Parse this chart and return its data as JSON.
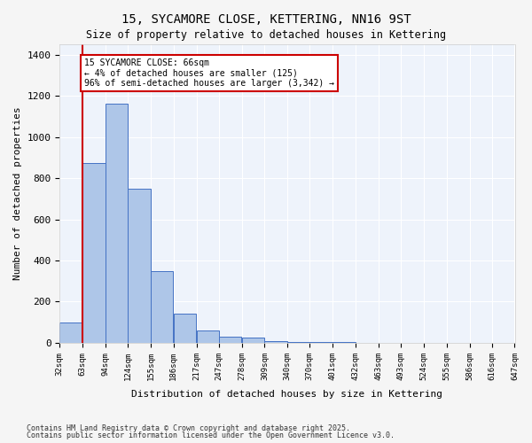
{
  "title1": "15, SYCAMORE CLOSE, KETTERING, NN16 9ST",
  "title2": "Size of property relative to detached houses in Kettering",
  "xlabel": "Distribution of detached houses by size in Kettering",
  "ylabel": "Number of detached properties",
  "bins": [
    32,
    63,
    94,
    124,
    155,
    186,
    217,
    247,
    278,
    309,
    340,
    370,
    401,
    432,
    463,
    493,
    524,
    555,
    586,
    616,
    647
  ],
  "bar_heights": [
    100,
    875,
    1160,
    750,
    350,
    140,
    60,
    30,
    25,
    10,
    5,
    3,
    2,
    1,
    1,
    1,
    0,
    0,
    0,
    0
  ],
  "bar_color": "#aec6e8",
  "bar_edge_color": "#4472c4",
  "bg_color": "#eef3fb",
  "grid_color": "#ffffff",
  "property_line_x": 63,
  "annotation_text": "15 SYCAMORE CLOSE: 66sqm\n← 4% of detached houses are smaller (125)\n96% of semi-detached houses are larger (3,342) →",
  "annotation_box_color": "#ffffff",
  "annotation_border_color": "#cc0000",
  "red_line_color": "#cc0000",
  "ylim": [
    0,
    1450
  ],
  "yticks": [
    0,
    200,
    400,
    600,
    800,
    1000,
    1200,
    1400
  ],
  "footnote1": "Contains HM Land Registry data © Crown copyright and database right 2025.",
  "footnote2": "Contains public sector information licensed under the Open Government Licence v3.0."
}
